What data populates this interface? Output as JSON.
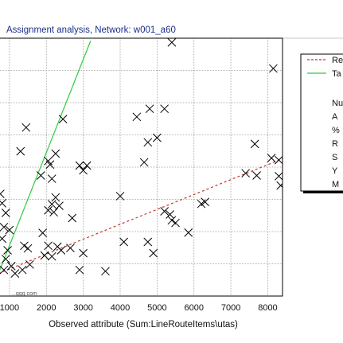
{
  "window": {
    "title": "Assignment analysis, Network: w001_a60"
  },
  "watermark": "...ggg.com",
  "colors": {
    "title_bar": "#d4d0c8",
    "title_text": "#1a2f8a",
    "regression_line": "#c0392b",
    "target_line": "#2ecc40",
    "marker": "#000000",
    "grid": "#a0a0a0"
  },
  "chart_data": {
    "type": "scatter",
    "title": "Assignment analysis, Network: w001_a60",
    "xlabel": "Observed attribute (Sum:LineRouteItems\\utas)",
    "ylabel": "",
    "xlim": [
      700,
      8400
    ],
    "ylim": [
      0,
      8000
    ],
    "xticks": [
      1000,
      2000,
      3000,
      4000,
      5000,
      6000,
      7000,
      8000
    ],
    "xtick_labels": [
      "1000",
      "2000",
      "3000",
      "4000",
      "5000",
      "6000",
      "7000",
      "8000"
    ],
    "yticks": [
      1000,
      2000,
      3000,
      4000,
      5000,
      6000,
      7000
    ],
    "grid": true,
    "legend": {
      "placement": "right",
      "entries": [
        "Re",
        "Ta"
      ],
      "stats_labels": [
        "Nu",
        "A",
        "%",
        "R",
        "S",
        "Y",
        "M"
      ]
    },
    "lines": [
      {
        "label": "Re",
        "style": "dashed",
        "color": "#c0392b",
        "x": [
          700,
          8400
        ],
        "y": [
          700,
          4260
        ]
      },
      {
        "label": "Ta",
        "style": "solid",
        "color": "#2ecc40",
        "x": [
          700,
          3200
        ],
        "y": [
          700,
          7920
        ]
      }
    ],
    "points": [
      {
        "x": 5400,
        "y": 7870
      },
      {
        "x": 8150,
        "y": 7060
      },
      {
        "x": 4800,
        "y": 5810
      },
      {
        "x": 5200,
        "y": 5810
      },
      {
        "x": 2450,
        "y": 5490
      },
      {
        "x": 4450,
        "y": 5560
      },
      {
        "x": 1450,
        "y": 5230
      },
      {
        "x": 5000,
        "y": 4910
      },
      {
        "x": 4750,
        "y": 4770
      },
      {
        "x": 7650,
        "y": 4720
      },
      {
        "x": 1300,
        "y": 4490
      },
      {
        "x": 2250,
        "y": 4420
      },
      {
        "x": 8100,
        "y": 4280
      },
      {
        "x": 8300,
        "y": 4220
      },
      {
        "x": 2050,
        "y": 4190
      },
      {
        "x": 2100,
        "y": 4080
      },
      {
        "x": 2900,
        "y": 4050
      },
      {
        "x": 3100,
        "y": 4050
      },
      {
        "x": 3000,
        "y": 3900
      },
      {
        "x": 4650,
        "y": 4150
      },
      {
        "x": 7400,
        "y": 3810
      },
      {
        "x": 7700,
        "y": 3740
      },
      {
        "x": 8300,
        "y": 3720
      },
      {
        "x": 1850,
        "y": 3740
      },
      {
        "x": 2150,
        "y": 3640
      },
      {
        "x": 8350,
        "y": 3430
      },
      {
        "x": 750,
        "y": 3170
      },
      {
        "x": 2250,
        "y": 3060
      },
      {
        "x": 4000,
        "y": 3100
      },
      {
        "x": 6300,
        "y": 2920
      },
      {
        "x": 6200,
        "y": 2860
      },
      {
        "x": 800,
        "y": 2880
      },
      {
        "x": 2150,
        "y": 2850
      },
      {
        "x": 2350,
        "y": 2800
      },
      {
        "x": 2050,
        "y": 2660
      },
      {
        "x": 2200,
        "y": 2600
      },
      {
        "x": 900,
        "y": 2580
      },
      {
        "x": 5200,
        "y": 2630
      },
      {
        "x": 5350,
        "y": 2530
      },
      {
        "x": 2700,
        "y": 2420
      },
      {
        "x": 5400,
        "y": 2350
      },
      {
        "x": 5500,
        "y": 2270
      },
      {
        "x": 850,
        "y": 2140
      },
      {
        "x": 1000,
        "y": 2050
      },
      {
        "x": 5850,
        "y": 1970
      },
      {
        "x": 1900,
        "y": 1960
      },
      {
        "x": 800,
        "y": 1780
      },
      {
        "x": 4100,
        "y": 1680
      },
      {
        "x": 4750,
        "y": 1680
      },
      {
        "x": 1400,
        "y": 1560
      },
      {
        "x": 2050,
        "y": 1560
      },
      {
        "x": 2300,
        "y": 1530
      },
      {
        "x": 1500,
        "y": 1480
      },
      {
        "x": 2650,
        "y": 1490
      },
      {
        "x": 950,
        "y": 1420
      },
      {
        "x": 2400,
        "y": 1420
      },
      {
        "x": 3000,
        "y": 1330
      },
      {
        "x": 4900,
        "y": 1330
      },
      {
        "x": 1950,
        "y": 1260
      },
      {
        "x": 2150,
        "y": 1230
      },
      {
        "x": 900,
        "y": 1150
      },
      {
        "x": 1550,
        "y": 980
      },
      {
        "x": 1050,
        "y": 930
      },
      {
        "x": 2900,
        "y": 810
      },
      {
        "x": 3600,
        "y": 770
      },
      {
        "x": 1350,
        "y": 810
      },
      {
        "x": 850,
        "y": 810
      },
      {
        "x": 1150,
        "y": 700
      }
    ]
  }
}
